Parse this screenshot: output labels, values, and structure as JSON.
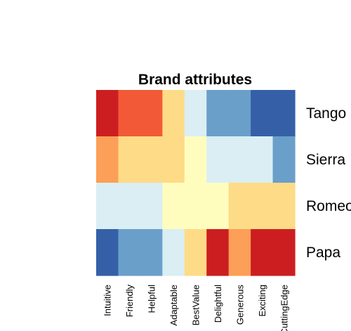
{
  "chart_data": {
    "type": "heatmap",
    "title": "Brand attributes",
    "columns": [
      "Intuitive",
      "Friendly",
      "Helpful",
      "Adaptable",
      "BestValue",
      "Delightful",
      "Generous",
      "Exciting",
      "CuttingEdge"
    ],
    "rows": [
      "Tango",
      "Sierra",
      "Romeo",
      "Papa"
    ],
    "values": [
      [
        9,
        8,
        8,
        4,
        2,
        1,
        1,
        0,
        0
      ],
      [
        6,
        4,
        4,
        4,
        3,
        2,
        2,
        2,
        1
      ],
      [
        2,
        2,
        2,
        3,
        3,
        3,
        4,
        4,
        4
      ],
      [
        0,
        1,
        1,
        2,
        4,
        9,
        6,
        9,
        9
      ]
    ],
    "color_scale": {
      "0": "#3560A8",
      "1": "#6A9FCA",
      "2": "#DAEEF4",
      "3": "#FFFDBE",
      "4": "#FEDB86",
      "6": "#FC9F58",
      "8": "#F25937",
      "9": "#CC1E21"
    },
    "legend": "none"
  }
}
